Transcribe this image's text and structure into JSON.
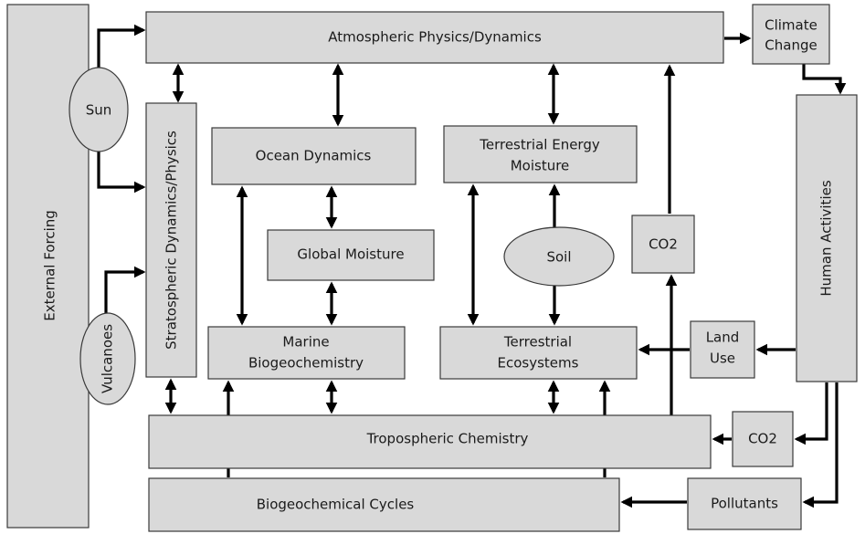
{
  "nodes": [
    {
      "id": "external",
      "lines": [
        "External Forcing"
      ]
    },
    {
      "id": "atmos",
      "lines": [
        "Atmospheric Physics/Dynamics"
      ]
    },
    {
      "id": "climate",
      "lines": [
        "Climate",
        "Change"
      ]
    },
    {
      "id": "sun",
      "lines": [
        "Sun"
      ]
    },
    {
      "id": "vulcanoes",
      "lines": [
        "Vulcanoes"
      ]
    },
    {
      "id": "strato",
      "lines": [
        "Stratospheric Dynamics/Physics"
      ]
    },
    {
      "id": "ocean",
      "lines": [
        "Ocean Dynamics"
      ]
    },
    {
      "id": "terr-energy",
      "lines": [
        "Terrestrial Energy",
        "Moisture"
      ]
    },
    {
      "id": "global-moisture",
      "lines": [
        "Global Moisture"
      ]
    },
    {
      "id": "soil",
      "lines": [
        "Soil"
      ]
    },
    {
      "id": "co2-upper",
      "lines": [
        "CO2"
      ]
    },
    {
      "id": "human",
      "lines": [
        "Human Activities"
      ]
    },
    {
      "id": "marine",
      "lines": [
        "Marine",
        "Biogeochemistry"
      ]
    },
    {
      "id": "terr-eco",
      "lines": [
        "Terrestrial",
        "Ecosystems"
      ]
    },
    {
      "id": "land-use",
      "lines": [
        "Land",
        "Use"
      ]
    },
    {
      "id": "tropo",
      "lines": [
        "Tropospheric Chemistry"
      ]
    },
    {
      "id": "co2-lower",
      "lines": [
        "CO2"
      ]
    },
    {
      "id": "biogeo",
      "lines": [
        "Biogeochemical Cycles"
      ]
    },
    {
      "id": "pollutants",
      "lines": [
        "Pollutants"
      ]
    }
  ]
}
